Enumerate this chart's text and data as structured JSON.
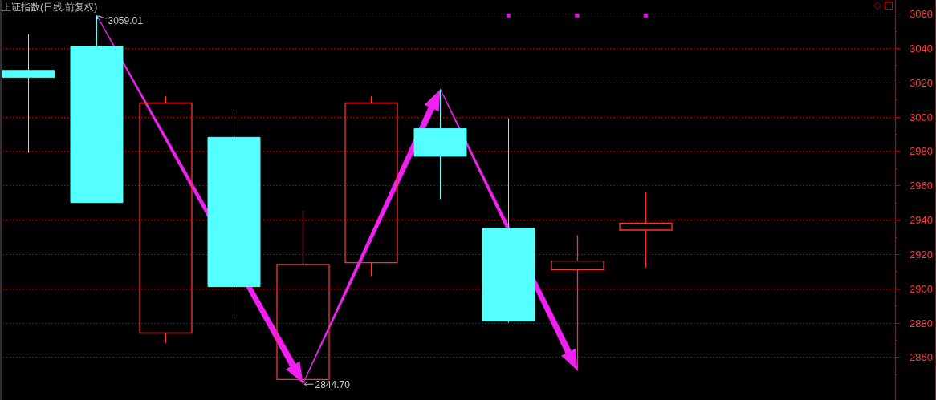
{
  "chart_data": {
    "type": "candlestick",
    "title": "上证指数(日线.前复权)",
    "categories": [
      null,
      null,
      null,
      null,
      null,
      null,
      null,
      null,
      null,
      null,
      null,
      null,
      null
    ],
    "ohlc": [
      [
        3027,
        3048,
        2979,
        3023
      ],
      [
        3041,
        3059.01,
        2950,
        2950
      ],
      [
        2874,
        3012,
        2868,
        3008
      ],
      [
        2988,
        3002,
        2884,
        2901
      ],
      [
        2847,
        2945,
        2844.7,
        2914
      ],
      [
        2915,
        3012,
        2907,
        3008
      ],
      [
        2993,
        3016,
        2952,
        2977
      ],
      [
        2935,
        2999,
        2880,
        2881
      ],
      [
        2911,
        2931,
        2852,
        2916
      ],
      [
        2934,
        2956,
        2912,
        2938
      ],
      null,
      null,
      null
    ],
    "colors": [
      "#54ffff",
      "#54ffff",
      "#ff3232",
      "#54ffff",
      "#ff3232",
      "#ff3232",
      "#54ffff",
      "#54ffff",
      "#ff3232",
      "#ff3232",
      null,
      null,
      null
    ],
    "value_labels": [
      null,
      "3059.01",
      null,
      null,
      "2844.70",
      null,
      null,
      null,
      null,
      null,
      null,
      null,
      null
    ],
    "series": [
      {
        "type": "scatter",
        "color": "#ff00ff",
        "values": [
          null,
          null,
          null,
          null,
          null,
          null,
          null,
          3059,
          3059,
          3059,
          null,
          null,
          null
        ]
      }
    ],
    "marker": "square",
    "ylim": [
      2835,
      3068
    ],
    "yticks": [
      {
        "value": 2850,
        "label": null
      },
      2860,
      {
        "value": 2870,
        "label": null
      },
      2880,
      {
        "value": 2890,
        "label": null
      },
      2900,
      {
        "value": 2910,
        "label": null
      },
      2920,
      {
        "value": 2930,
        "label": null
      },
      2940,
      {
        "value": 2950,
        "label": null
      },
      2960,
      {
        "value": 2970,
        "label": null
      },
      2980,
      {
        "value": 2990,
        "label": null
      },
      3000,
      {
        "value": 3010,
        "label": null
      },
      3020,
      {
        "value": 3030,
        "label": null
      },
      3040,
      {
        "value": 3050,
        "label": null
      },
      3060
    ],
    "grid": "y"
  }
}
